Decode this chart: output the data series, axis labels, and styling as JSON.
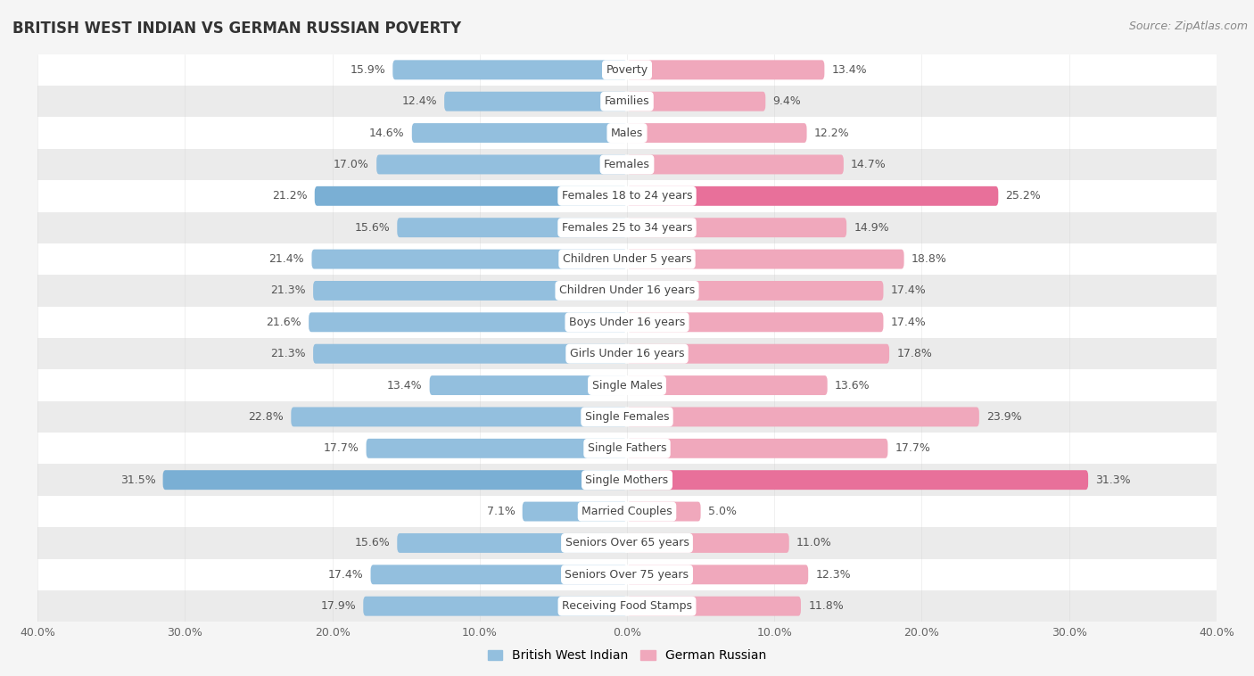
{
  "title": "BRITISH WEST INDIAN VS GERMAN RUSSIAN POVERTY",
  "source": "Source: ZipAtlas.com",
  "categories": [
    "Poverty",
    "Families",
    "Males",
    "Females",
    "Females 18 to 24 years",
    "Females 25 to 34 years",
    "Children Under 5 years",
    "Children Under 16 years",
    "Boys Under 16 years",
    "Girls Under 16 years",
    "Single Males",
    "Single Females",
    "Single Fathers",
    "Single Mothers",
    "Married Couples",
    "Seniors Over 65 years",
    "Seniors Over 75 years",
    "Receiving Food Stamps"
  ],
  "british_west_indian": [
    15.9,
    12.4,
    14.6,
    17.0,
    21.2,
    15.6,
    21.4,
    21.3,
    21.6,
    21.3,
    13.4,
    22.8,
    17.7,
    31.5,
    7.1,
    15.6,
    17.4,
    17.9
  ],
  "german_russian": [
    13.4,
    9.4,
    12.2,
    14.7,
    25.2,
    14.9,
    18.8,
    17.4,
    17.4,
    17.8,
    13.6,
    23.9,
    17.7,
    31.3,
    5.0,
    11.0,
    12.3,
    11.8
  ],
  "blue_color": "#93bfde",
  "pink_color": "#f0a8bc",
  "pink_highlight_color": "#e8709a",
  "blue_highlight_color": "#7aafd4",
  "bg_color": "#f5f5f5",
  "row_light": "#ffffff",
  "row_dark": "#ebebeb",
  "xlim": 40.0,
  "bar_height": 0.62,
  "label_fontsize": 9.0,
  "cat_fontsize": 9.0,
  "legend_blue": "British West Indian",
  "legend_pink": "German Russian",
  "highlight_rows": [
    4,
    13
  ],
  "highlight_pink": "#e8709a",
  "highlight_blue": "#7aafd4"
}
